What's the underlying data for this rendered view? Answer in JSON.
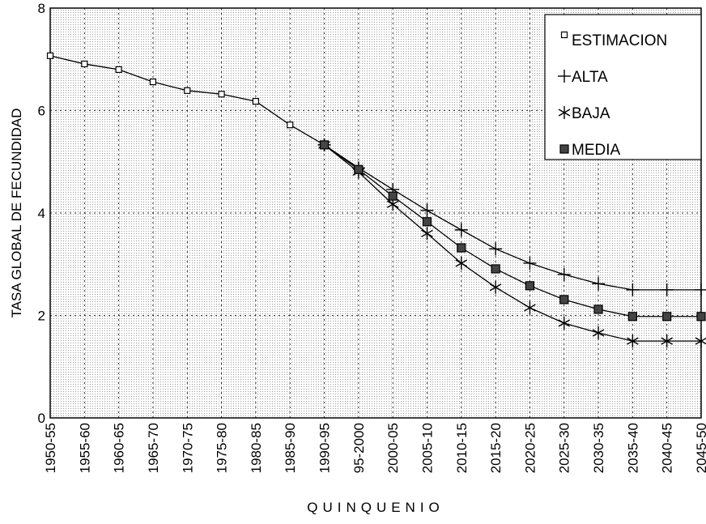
{
  "chart_data": {
    "type": "line",
    "x_label": "QUINQUENIO",
    "y_label": "TASA GLOBAL DE FECUNDIDAD",
    "categories": [
      "1950-55",
      "1955-60",
      "1960-65",
      "1965-70",
      "1970-75",
      "1975-80",
      "1980-85",
      "1985-90",
      "1990-95",
      "95-2000",
      "2000-05",
      "2005-10",
      "2010-15",
      "2015-20",
      "2020-25",
      "2025-30",
      "2030-35",
      "2035-40",
      "2040-45",
      "2045-50"
    ],
    "series": [
      {
        "name": "ESTIMACION",
        "color": "#000000",
        "marker": "open-square",
        "values": [
          7.07,
          6.91,
          6.8,
          6.56,
          6.39,
          6.32,
          6.18,
          5.72,
          5.33,
          null,
          null,
          null,
          null,
          null,
          null,
          null,
          null,
          null,
          null,
          null
        ]
      },
      {
        "name": "ALTA",
        "color": "#000000",
        "marker": "plus",
        "values": [
          null,
          null,
          null,
          null,
          null,
          null,
          null,
          null,
          5.33,
          4.88,
          4.46,
          4.05,
          3.67,
          3.3,
          3.02,
          2.8,
          2.62,
          2.5,
          2.5,
          2.5
        ]
      },
      {
        "name": "BAJA",
        "color": "#000000",
        "marker": "asterisk",
        "values": [
          null,
          null,
          null,
          null,
          null,
          null,
          null,
          null,
          5.33,
          4.8,
          4.17,
          3.6,
          3.02,
          2.55,
          2.15,
          1.85,
          1.66,
          1.5,
          1.5,
          1.5
        ]
      },
      {
        "name": "MEDIA",
        "color": "#000000",
        "marker": "filled-square",
        "values": [
          null,
          null,
          null,
          null,
          null,
          null,
          null,
          null,
          5.33,
          4.85,
          4.33,
          3.83,
          3.32,
          2.91,
          2.58,
          2.31,
          2.12,
          1.98,
          1.98,
          1.98
        ]
      }
    ],
    "ylim": [
      0,
      8
    ],
    "yticks": [
      0,
      2,
      4,
      6,
      8
    ],
    "grid": true,
    "legend": "top-right"
  }
}
